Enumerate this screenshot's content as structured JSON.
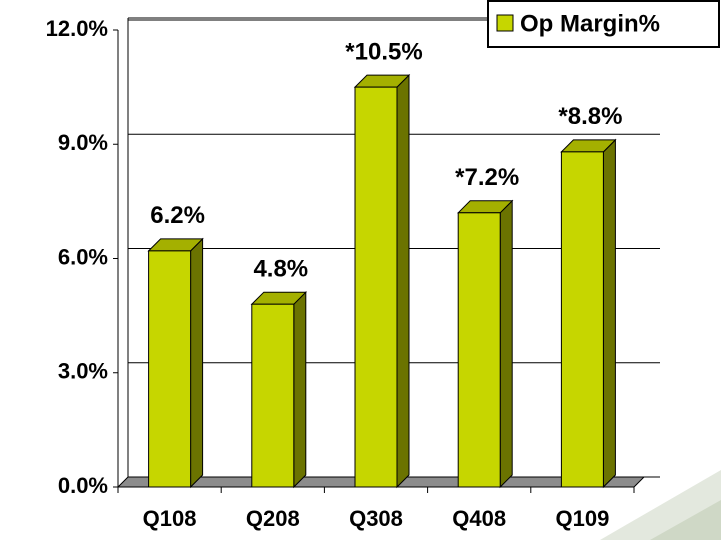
{
  "chart_data": {
    "type": "bar3d",
    "categories": [
      "Q108",
      "Q208",
      "Q308",
      "Q408",
      "Q109"
    ],
    "series": [
      {
        "name": "Op Margin%",
        "color": "#c6d600",
        "values": [
          6.2,
          4.8,
          10.5,
          7.2,
          8.8
        ],
        "value_labels": [
          "6.2%",
          "4.8%",
          "*10.5%",
          "*7.2%",
          "*8.8%"
        ]
      }
    ],
    "ylim": [
      0,
      12
    ],
    "yticks": [
      {
        "value": 0,
        "label": "0.0%"
      },
      {
        "value": 3,
        "label": "3.0%"
      },
      {
        "value": 6,
        "label": "6.0%"
      },
      {
        "value": 9,
        "label": "9.0%"
      },
      {
        "value": 12,
        "label": "12.0%"
      }
    ],
    "grid": true,
    "legend": "top-right"
  }
}
